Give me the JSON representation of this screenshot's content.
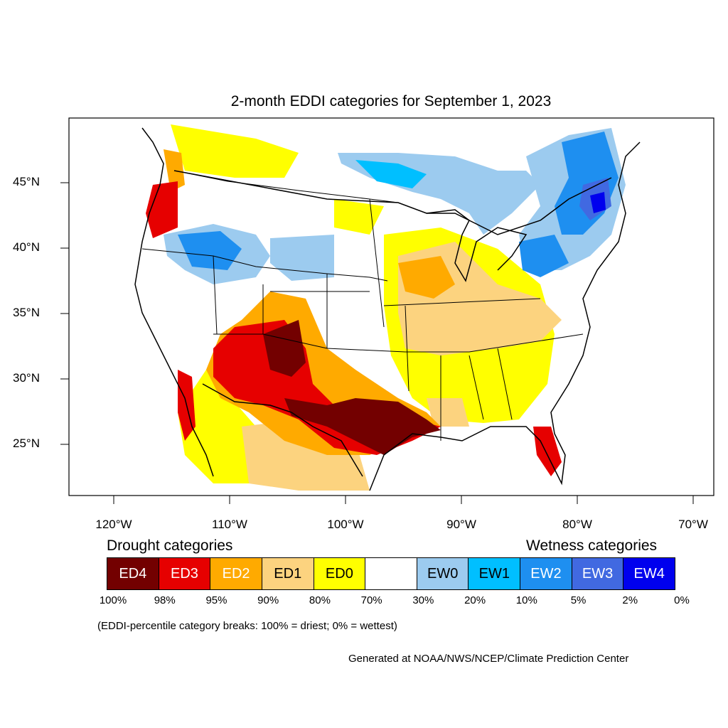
{
  "title": "2-month EDDI categories for September 1, 2023",
  "lat_labels": [
    "45°N",
    "40°N",
    "35°N",
    "30°N",
    "25°N"
  ],
  "lon_labels": [
    "120°W",
    "110°W",
    "100°W",
    "90°W",
    "80°W",
    "70°W"
  ],
  "legend": {
    "drought_heading": "Drought categories",
    "wetness_heading": "Wetness categories",
    "categories": [
      {
        "label": "ED4",
        "color": "#730000",
        "text_color": "#ffffff"
      },
      {
        "label": "ED3",
        "color": "#e60000",
        "text_color": "#ffffff"
      },
      {
        "label": "ED2",
        "color": "#ffaa00",
        "text_color": "#ffffff"
      },
      {
        "label": "ED1",
        "color": "#fcd37f",
        "text_color": "#000000"
      },
      {
        "label": "ED0",
        "color": "#ffff00",
        "text_color": "#000000"
      },
      {
        "label": "",
        "color": "#ffffff",
        "text_color": "#000000"
      },
      {
        "label": "EW0",
        "color": "#9ccbef",
        "text_color": "#000000"
      },
      {
        "label": "EW1",
        "color": "#00bfff",
        "text_color": "#000000"
      },
      {
        "label": "EW2",
        "color": "#1e8ff0",
        "text_color": "#ffffff"
      },
      {
        "label": "EW3",
        "color": "#4169e1",
        "text_color": "#ffffff"
      },
      {
        "label": "EW4",
        "color": "#0000ee",
        "text_color": "#ffffff"
      }
    ],
    "breaks": [
      "100%",
      "98%",
      "95%",
      "90%",
      "80%",
      "70%",
      "30%",
      "20%",
      "10%",
      "5%",
      "2%",
      "0%"
    ]
  },
  "note": "(EDDI-percentile category breaks: 100% = driest; 0% = wettest)",
  "credit": "Generated at NOAA/NWS/NCEP/Climate Prediction Center"
}
